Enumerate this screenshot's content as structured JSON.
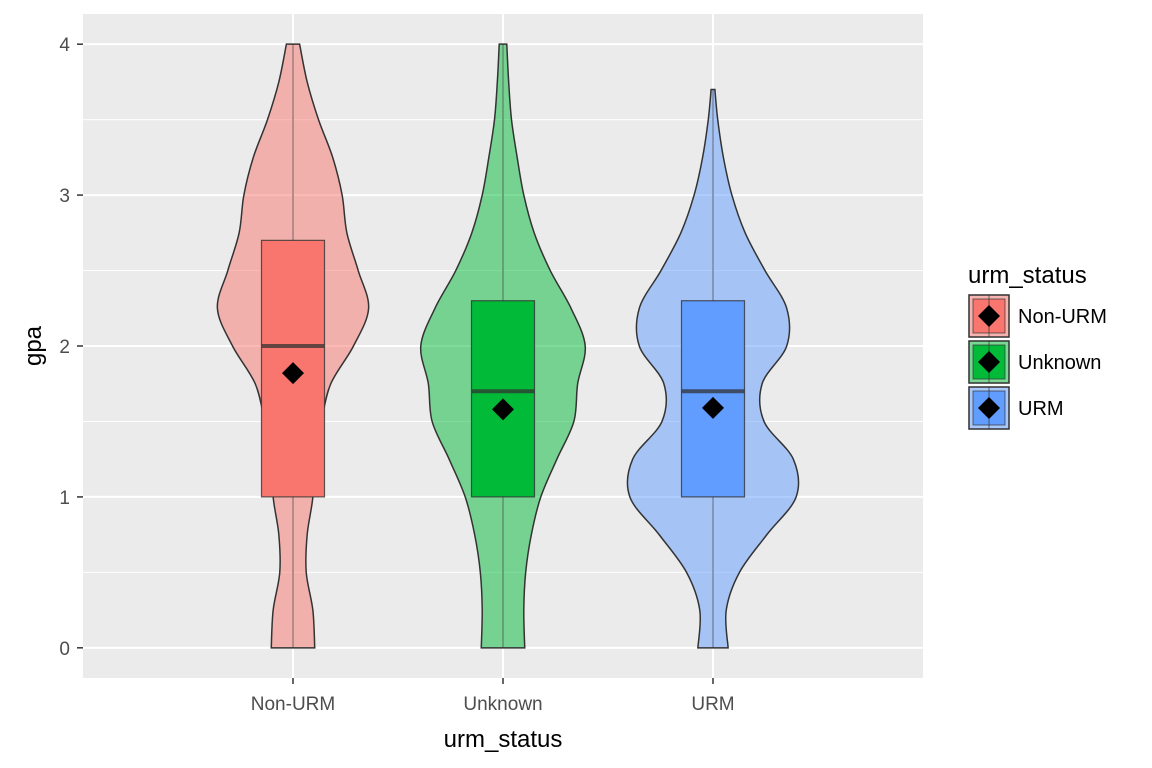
{
  "chart_data": {
    "type": "violin",
    "xlabel": "urm_status",
    "ylabel": "gpa",
    "ylim": [
      -0.2,
      4.2
    ],
    "yticks": [
      0,
      1,
      2,
      3,
      4
    ],
    "categories": [
      "Non-URM",
      "Unknown",
      "URM"
    ],
    "grid": true,
    "legend": {
      "title": "urm_status",
      "position": "right",
      "entries": [
        "Non-URM",
        "Unknown",
        "URM"
      ]
    },
    "series": [
      {
        "category": "Non-URM",
        "color": "#F8766D",
        "violin": [
          [
            0,
            0.23
          ],
          [
            0.25,
            0.21
          ],
          [
            0.5,
            0.14
          ],
          [
            0.75,
            0.15
          ],
          [
            1,
            0.21
          ],
          [
            1.25,
            0.22
          ],
          [
            1.5,
            0.3
          ],
          [
            1.75,
            0.4
          ],
          [
            2,
            0.64
          ],
          [
            2.25,
            0.8
          ],
          [
            2.5,
            0.69
          ],
          [
            2.75,
            0.57
          ],
          [
            3,
            0.52
          ],
          [
            3.25,
            0.42
          ],
          [
            3.5,
            0.27
          ],
          [
            3.75,
            0.15
          ],
          [
            4,
            0.07
          ]
        ],
        "box": {
          "q1": 1,
          "median": 2,
          "q3": 2.7,
          "min": 0,
          "max": 4
        },
        "mean": 1.82
      },
      {
        "category": "Unknown",
        "color": "#00BA38",
        "violin": [
          [
            0,
            0.23
          ],
          [
            0.25,
            0.22
          ],
          [
            0.5,
            0.24
          ],
          [
            0.75,
            0.3
          ],
          [
            1,
            0.4
          ],
          [
            1.25,
            0.57
          ],
          [
            1.5,
            0.75
          ],
          [
            1.75,
            0.79
          ],
          [
            2,
            0.87
          ],
          [
            2.25,
            0.72
          ],
          [
            2.5,
            0.5
          ],
          [
            2.75,
            0.33
          ],
          [
            3,
            0.22
          ],
          [
            3.25,
            0.15
          ],
          [
            3.5,
            0.09
          ],
          [
            3.75,
            0.06
          ],
          [
            4,
            0.04
          ]
        ],
        "box": {
          "q1": 1,
          "median": 1.7,
          "q3": 2.3,
          "min": 0,
          "max": 4
        },
        "mean": 1.58
      },
      {
        "category": "URM",
        "color": "#619CFF",
        "violin": [
          [
            0,
            0.16
          ],
          [
            0.25,
            0.14
          ],
          [
            0.5,
            0.28
          ],
          [
            0.75,
            0.57
          ],
          [
            1,
            0.88
          ],
          [
            1.25,
            0.85
          ],
          [
            1.5,
            0.54
          ],
          [
            1.75,
            0.52
          ],
          [
            2,
            0.78
          ],
          [
            2.25,
            0.78
          ],
          [
            2.5,
            0.55
          ],
          [
            2.75,
            0.34
          ],
          [
            3,
            0.2
          ],
          [
            3.25,
            0.11
          ],
          [
            3.5,
            0.05
          ],
          [
            3.7,
            0.02
          ]
        ],
        "box": {
          "q1": 1,
          "median": 1.7,
          "q3": 2.3,
          "min": 0,
          "max": 3.7
        },
        "mean": 1.59
      }
    ]
  }
}
